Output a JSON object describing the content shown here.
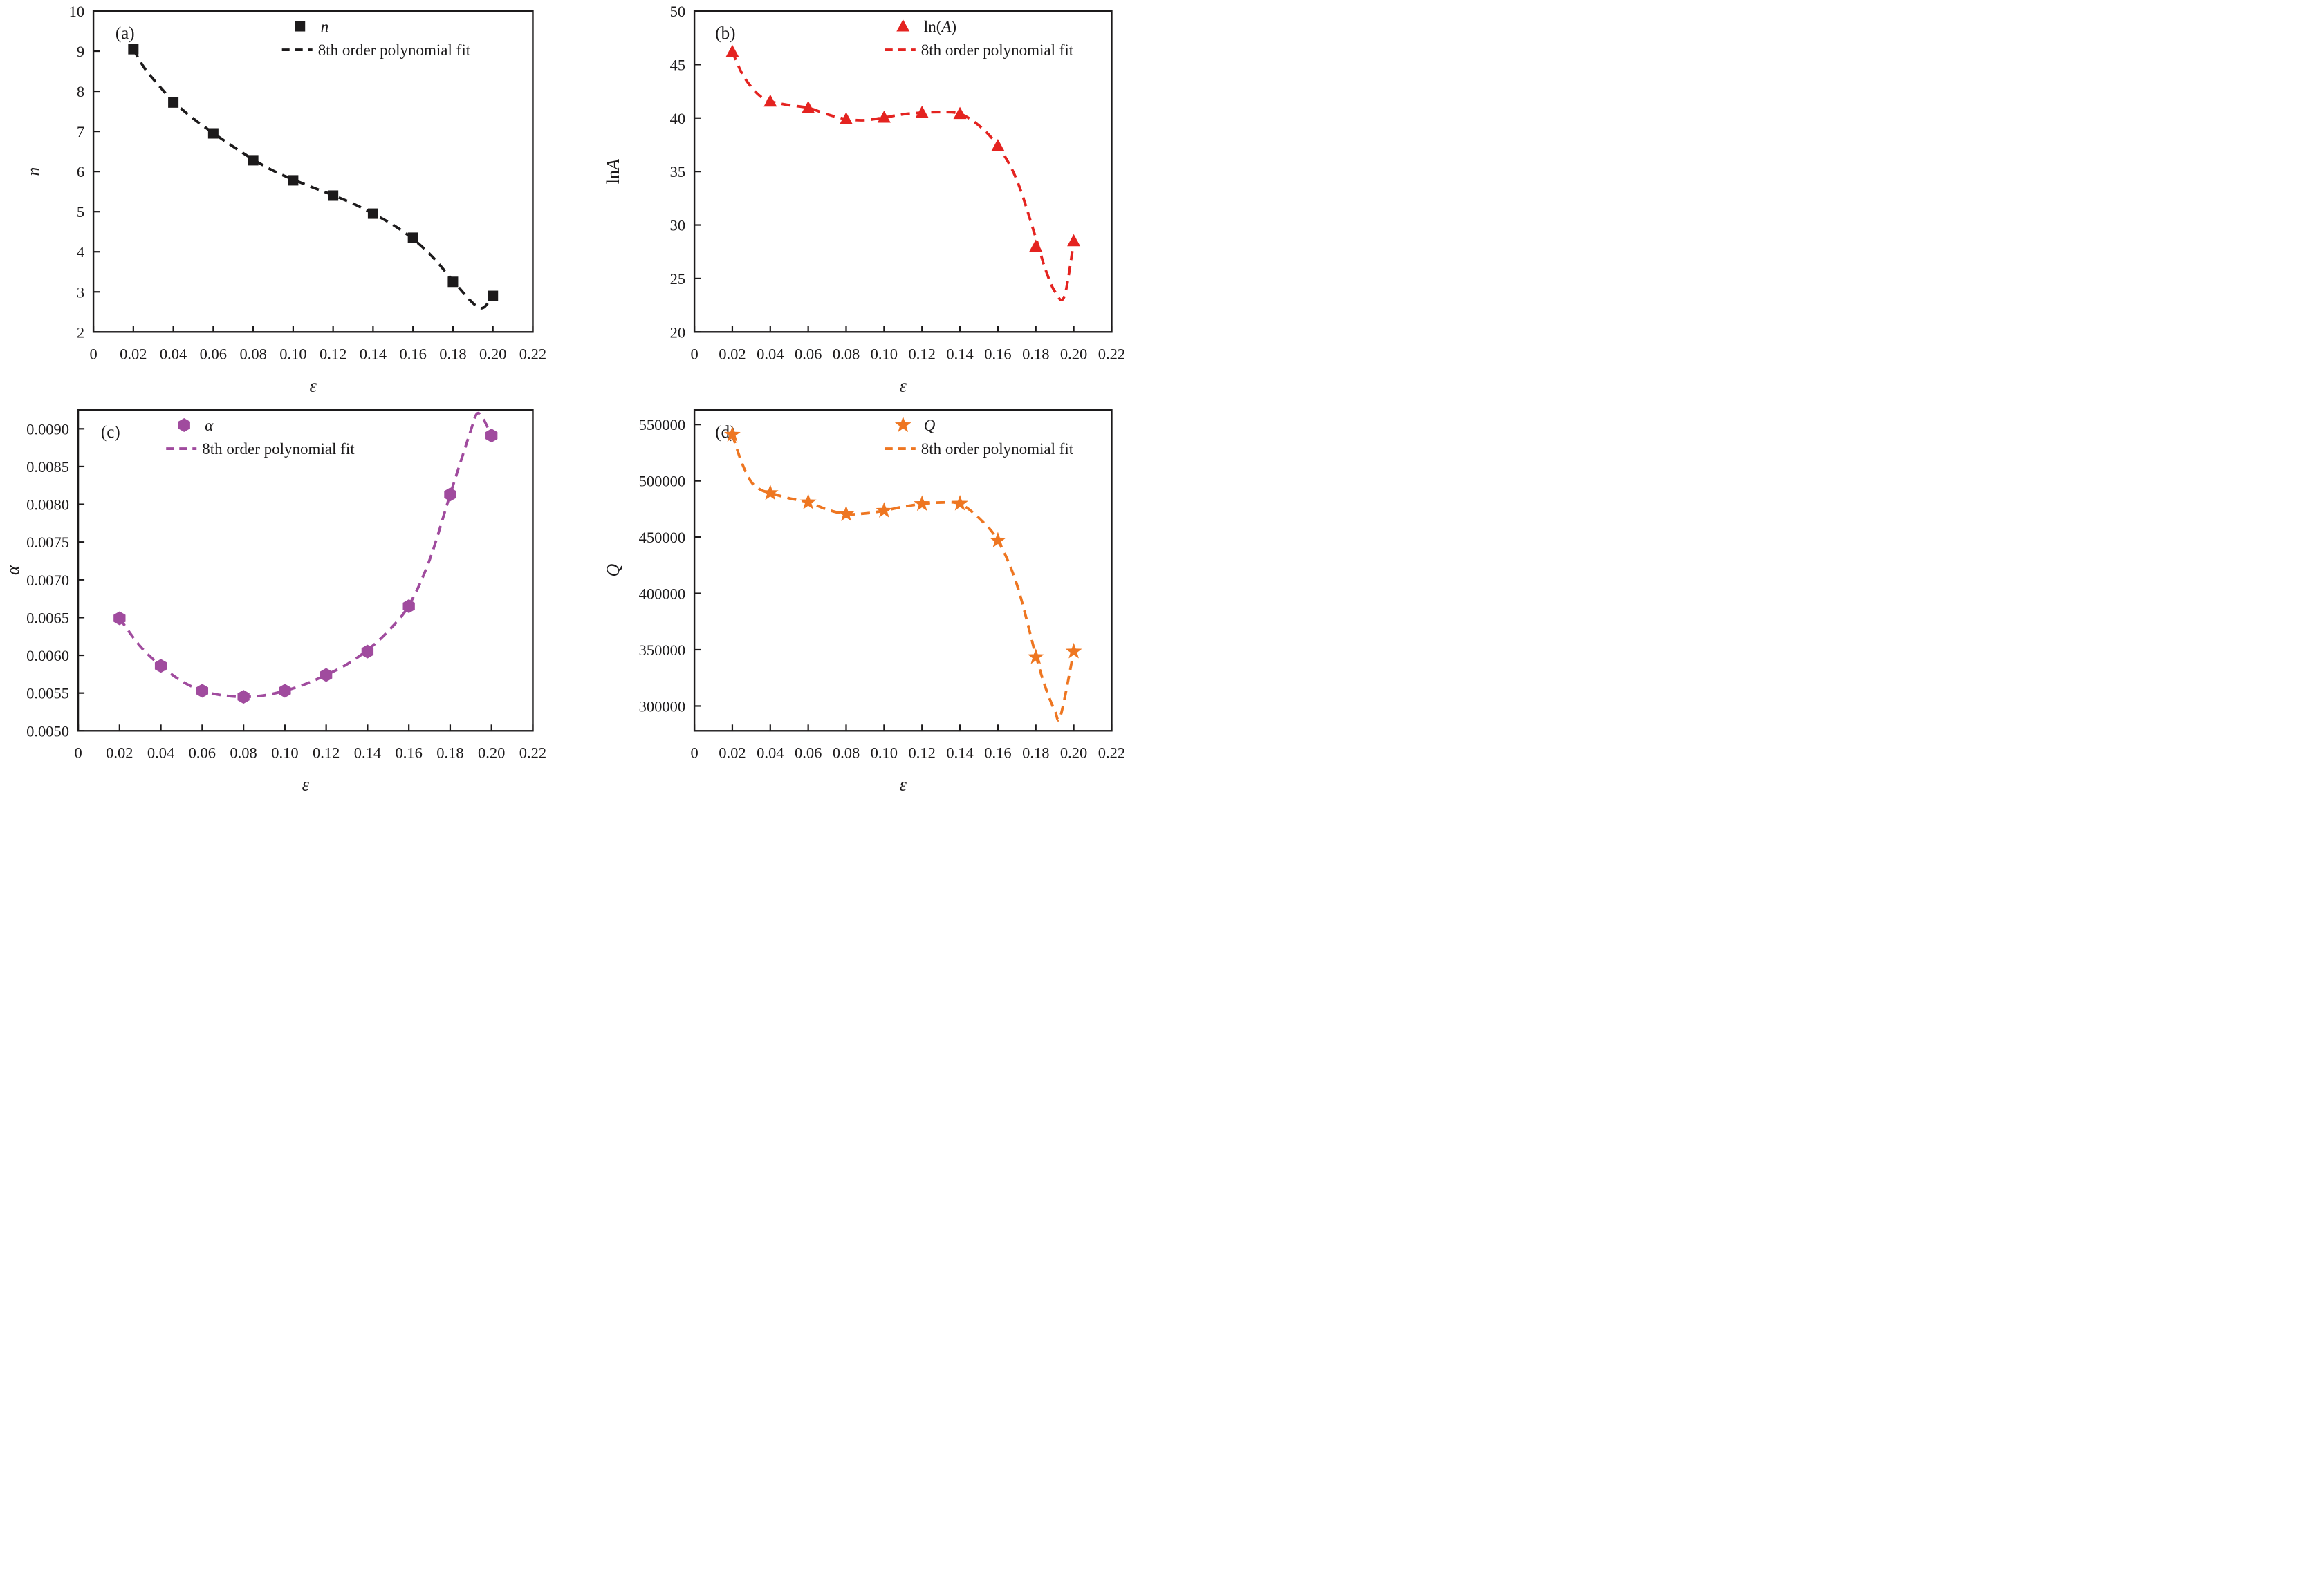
{
  "figure_title": "",
  "colors": {
    "panel_a": "#1c1a1b",
    "panel_b": "#e42320",
    "panel_c": "#a04b9e",
    "panel_d": "#ee7621",
    "frame": "#1c1a1b"
  },
  "chart_data": [
    {
      "id": "a",
      "type": "scatter",
      "panel_label": "(a)",
      "marker": "square",
      "color": "#1c1a1b",
      "xlabel_parts": [
        {
          "text": "ε",
          "italic": true
        }
      ],
      "ylabel_parts": [
        {
          "text": "n",
          "italic": true
        }
      ],
      "legend": {
        "marker_label_parts": [
          {
            "text": "n",
            "italic": true
          }
        ],
        "fit_label": "8th order polynomial fit"
      },
      "x": [
        0.02,
        0.04,
        0.06,
        0.08,
        0.1,
        0.12,
        0.14,
        0.16,
        0.18,
        0.2
      ],
      "y": [
        9.05,
        7.72,
        6.95,
        6.28,
        5.78,
        5.4,
        4.95,
        4.35,
        3.25,
        2.9
      ],
      "fit_curve": [
        [
          0.02,
          9.05
        ],
        [
          0.025,
          8.62
        ],
        [
          0.03,
          8.3
        ],
        [
          0.04,
          7.75
        ],
        [
          0.05,
          7.32
        ],
        [
          0.06,
          6.96
        ],
        [
          0.07,
          6.62
        ],
        [
          0.08,
          6.3
        ],
        [
          0.09,
          6.02
        ],
        [
          0.1,
          5.8
        ],
        [
          0.11,
          5.6
        ],
        [
          0.12,
          5.41
        ],
        [
          0.13,
          5.2
        ],
        [
          0.14,
          4.95
        ],
        [
          0.15,
          4.67
        ],
        [
          0.16,
          4.32
        ],
        [
          0.17,
          3.86
        ],
        [
          0.18,
          3.28
        ],
        [
          0.19,
          2.72
        ],
        [
          0.195,
          2.6
        ],
        [
          0.2,
          2.9
        ]
      ],
      "xlim": [
        0,
        0.22
      ],
      "ylim": [
        2,
        10
      ],
      "xticks": [
        0,
        0.02,
        0.04,
        0.06,
        0.08,
        0.1,
        0.12,
        0.14,
        0.16,
        0.18,
        0.2,
        0.22
      ],
      "yticks": [
        2,
        3,
        4,
        5,
        6,
        7,
        8,
        9,
        10
      ],
      "ytick_format": "int",
      "grid": false,
      "legend_position": "top-center",
      "layout": {
        "margin_left": 135,
        "ylabel_x": 57,
        "legend_frac": 0.47
      }
    },
    {
      "id": "b",
      "type": "scatter",
      "panel_label": "(b)",
      "marker": "triangle",
      "color": "#e42320",
      "xlabel_parts": [
        {
          "text": "ε",
          "italic": true
        }
      ],
      "ylabel_parts": [
        {
          "text": "ln",
          "italic": false
        },
        {
          "text": "A",
          "italic": true
        }
      ],
      "legend": {
        "marker_label_parts": [
          {
            "text": "ln(",
            "italic": false
          },
          {
            "text": "A",
            "italic": true
          },
          {
            "text": ")",
            "italic": false
          }
        ],
        "fit_label": "8th order polynomial fit"
      },
      "x": [
        0.02,
        0.04,
        0.06,
        0.08,
        0.1,
        0.12,
        0.14,
        0.16,
        0.18,
        0.2
      ],
      "y": [
        46.2,
        41.55,
        40.95,
        39.9,
        40.05,
        40.5,
        40.4,
        37.4,
        28.0,
        28.5
      ],
      "fit_curve": [
        [
          0.02,
          46.2
        ],
        [
          0.025,
          44.2
        ],
        [
          0.03,
          42.9
        ],
        [
          0.035,
          42.0
        ],
        [
          0.04,
          41.55
        ],
        [
          0.05,
          41.2
        ],
        [
          0.06,
          40.95
        ],
        [
          0.07,
          40.35
        ],
        [
          0.08,
          39.9
        ],
        [
          0.09,
          39.8
        ],
        [
          0.1,
          40.05
        ],
        [
          0.11,
          40.35
        ],
        [
          0.12,
          40.5
        ],
        [
          0.13,
          40.55
        ],
        [
          0.14,
          40.4
        ],
        [
          0.15,
          39.3
        ],
        [
          0.16,
          37.4
        ],
        [
          0.17,
          34.2
        ],
        [
          0.18,
          28.8
        ],
        [
          0.185,
          25.9
        ],
        [
          0.19,
          23.8
        ],
        [
          0.195,
          23.3
        ],
        [
          0.2,
          28.4
        ]
      ],
      "xlim": [
        0,
        0.22
      ],
      "ylim": [
        20,
        50
      ],
      "xticks": [
        0,
        0.02,
        0.04,
        0.06,
        0.08,
        0.1,
        0.12,
        0.14,
        0.16,
        0.18,
        0.2,
        0.22
      ],
      "yticks": [
        20,
        25,
        30,
        35,
        40,
        45,
        50
      ],
      "ytick_format": "int",
      "grid": false,
      "legend_position": "top-center",
      "layout": {
        "margin_left": 167,
        "ylabel_x": 58,
        "legend_frac": 0.5
      }
    },
    {
      "id": "c",
      "type": "scatter",
      "panel_label": "(c)",
      "marker": "hexagon",
      "color": "#a04b9e",
      "xlabel_parts": [
        {
          "text": "ε",
          "italic": true
        }
      ],
      "ylabel_parts": [
        {
          "text": "α",
          "italic": true
        }
      ],
      "legend": {
        "marker_label_parts": [
          {
            "text": "α",
            "italic": true
          }
        ],
        "fit_label": "8th order polynomial fit"
      },
      "x": [
        0.02,
        0.04,
        0.06,
        0.08,
        0.1,
        0.12,
        0.14,
        0.16,
        0.18,
        0.2
      ],
      "y": [
        0.00649,
        0.00586,
        0.00553,
        0.00545,
        0.00553,
        0.00574,
        0.00605,
        0.00665,
        0.00813,
        0.00891
      ],
      "fit_curve": [
        [
          0.02,
          0.00649
        ],
        [
          0.03,
          0.00612
        ],
        [
          0.04,
          0.00586
        ],
        [
          0.05,
          0.00566
        ],
        [
          0.06,
          0.00553
        ],
        [
          0.07,
          0.00547
        ],
        [
          0.08,
          0.00545
        ],
        [
          0.09,
          0.00547
        ],
        [
          0.1,
          0.00553
        ],
        [
          0.11,
          0.00562
        ],
        [
          0.12,
          0.00574
        ],
        [
          0.13,
          0.00588
        ],
        [
          0.14,
          0.00607
        ],
        [
          0.15,
          0.00632
        ],
        [
          0.16,
          0.00666
        ],
        [
          0.17,
          0.00726
        ],
        [
          0.18,
          0.00813
        ],
        [
          0.19,
          0.00898
        ],
        [
          0.193,
          0.0092
        ],
        [
          0.196,
          0.00913
        ],
        [
          0.2,
          0.00891
        ]
      ],
      "xlim": [
        0,
        0.22
      ],
      "ylim": [
        0.005,
        0.00925
      ],
      "xticks": [
        0,
        0.02,
        0.04,
        0.06,
        0.08,
        0.1,
        0.12,
        0.14,
        0.16,
        0.18,
        0.2,
        0.22
      ],
      "yticks": [
        0.005,
        0.0055,
        0.006,
        0.0065,
        0.007,
        0.0075,
        0.008,
        0.0085,
        0.009
      ],
      "ytick_format": "fixed4",
      "grid": false,
      "legend_position": "top-left",
      "layout": {
        "margin_left": 113,
        "ylabel_x": 27,
        "legend_frac": 0.233
      }
    },
    {
      "id": "d",
      "type": "scatter",
      "panel_label": "(d)",
      "marker": "star",
      "color": "#ee7621",
      "xlabel_parts": [
        {
          "text": "ε",
          "italic": true
        }
      ],
      "ylabel_parts": [
        {
          "text": "Q",
          "italic": true
        }
      ],
      "legend": {
        "marker_label_parts": [
          {
            "text": "Q",
            "italic": true
          }
        ],
        "fit_label": "8th order polynomial fit"
      },
      "x": [
        0.02,
        0.04,
        0.06,
        0.08,
        0.1,
        0.12,
        0.14,
        0.16,
        0.18,
        0.2
      ],
      "y": [
        541000,
        489200,
        481000,
        470500,
        473500,
        479500,
        479800,
        447000,
        343500,
        348500
      ],
      "fit_curve": [
        [
          0.02,
          541000
        ],
        [
          0.025,
          516000
        ],
        [
          0.03,
          499000
        ],
        [
          0.035,
          492000
        ],
        [
          0.04,
          489200
        ],
        [
          0.05,
          484500
        ],
        [
          0.06,
          481000
        ],
        [
          0.07,
          474500
        ],
        [
          0.08,
          470500
        ],
        [
          0.09,
          471000
        ],
        [
          0.1,
          473500
        ],
        [
          0.11,
          477000
        ],
        [
          0.12,
          479500
        ],
        [
          0.13,
          480800
        ],
        [
          0.14,
          479500
        ],
        [
          0.15,
          467000
        ],
        [
          0.16,
          447000
        ],
        [
          0.17,
          408000
        ],
        [
          0.18,
          345000
        ],
        [
          0.185,
          317000
        ],
        [
          0.19,
          296000
        ],
        [
          0.193,
          291000
        ],
        [
          0.2,
          348500
        ]
      ],
      "xlim": [
        0,
        0.22
      ],
      "ylim": [
        278000,
        563000
      ],
      "xticks": [
        0,
        0.02,
        0.04,
        0.06,
        0.08,
        0.1,
        0.12,
        0.14,
        0.16,
        0.18,
        0.2,
        0.22
      ],
      "yticks": [
        300000,
        350000,
        400000,
        450000,
        500000,
        550000
      ],
      "ytick_format": "plain",
      "grid": false,
      "legend_position": "top-center",
      "layout": {
        "margin_left": 167,
        "ylabel_x": 58,
        "legend_frac": 0.5
      }
    }
  ]
}
